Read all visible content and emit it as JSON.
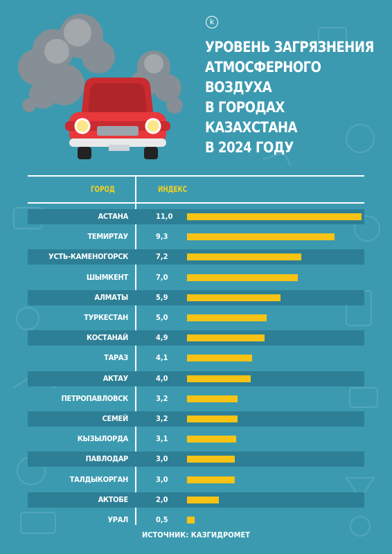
{
  "logo_letter": "k",
  "title_lines": [
    "УРОВЕНЬ ЗАГРЯЗНЕНИЯ",
    "АТМОСФЕРНОГО",
    "ВОЗДУХА",
    "В ГОРОДАХ",
    "КАЗАХСТАНА",
    "В 2024 ГОДУ"
  ],
  "source": "ИСТОЧНИК: КАЗГИДРОМЕТ",
  "colors": {
    "background": "#3b9ab0",
    "band": "#2d7f96",
    "bar": "#f7c314",
    "header": "#f7d21d",
    "car_body": "#e8383b"
  },
  "chart_data": {
    "type": "bar",
    "orientation": "horizontal",
    "column_headers": {
      "category": "ГОРОД",
      "value": "ИНДЕКС"
    },
    "categories": [
      "АСТАНА",
      "ТЕМИРТАУ",
      "УСТЬ-КАМЕНОГОРСК",
      "ШЫМКЕНТ",
      "АЛМАТЫ",
      "ТУРКЕСТАН",
      "КОСТАНАЙ",
      "ТАРАЗ",
      "АКТАУ",
      "ПЕТРОПАВЛОВСК",
      "СЕМЕЙ",
      "КЫЗЫЛОРДА",
      "ПАВЛОДАР",
      "ТАЛДЫКОРГАН",
      "АКТОБЕ",
      "УРАЛ"
    ],
    "values": [
      11.0,
      9.3,
      7.2,
      7.0,
      5.9,
      5.0,
      4.9,
      4.1,
      4.0,
      3.2,
      3.2,
      3.1,
      3.0,
      3.0,
      2.0,
      0.5
    ],
    "value_labels": [
      "11,0",
      "9,3",
      "7,2",
      "7,0",
      "5,9",
      "5,0",
      "4,9",
      "4,1",
      "4,0",
      "3,2",
      "3,2",
      "3,1",
      "3,0",
      "3,0",
      "2,0",
      "0,5"
    ],
    "xlim": [
      0,
      11
    ],
    "grid": false,
    "legend": "none"
  }
}
